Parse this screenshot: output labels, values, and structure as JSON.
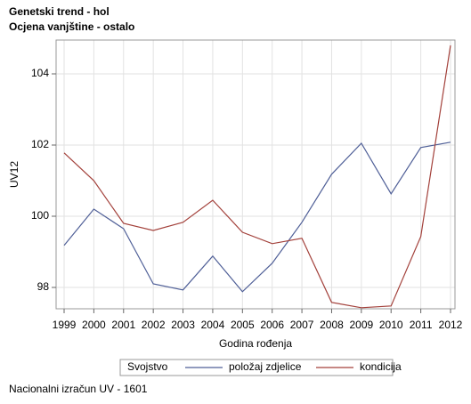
{
  "chart_data": {
    "type": "line",
    "title": "Genetski trend - hol",
    "subtitle": "Ocjena vanjštine - ostalo",
    "x_label": "Godina rođenja",
    "y_label": "UV12",
    "legend_title": "Svojstvo",
    "footnote": "Nacionalni izračun UV - 1601",
    "x": [
      1999,
      2000,
      2001,
      2002,
      2003,
      2004,
      2005,
      2006,
      2007,
      2008,
      2009,
      2010,
      2011,
      2012
    ],
    "series": [
      {
        "name": "položaj zdjelice",
        "color": "#4f5f97",
        "values": [
          99.18,
          100.2,
          99.65,
          98.1,
          97.93,
          98.88,
          97.88,
          98.68,
          99.83,
          101.18,
          102.05,
          100.63,
          101.93,
          102.08
        ]
      },
      {
        "name": "kondicija",
        "color": "#a3413b",
        "values": [
          101.78,
          101.0,
          99.8,
          99.6,
          99.83,
          100.45,
          99.55,
          99.23,
          99.38,
          97.58,
          97.43,
          97.48,
          99.43,
          104.8
        ]
      }
    ],
    "xlim": [
      1998.73,
      2012.15
    ],
    "ylim": [
      97.4,
      104.95
    ],
    "xticks": [
      1999,
      2000,
      2001,
      2002,
      2003,
      2004,
      2005,
      2006,
      2007,
      2008,
      2009,
      2010,
      2011,
      2012
    ],
    "yticks": [
      98,
      100,
      102,
      104
    ],
    "grid": true
  }
}
